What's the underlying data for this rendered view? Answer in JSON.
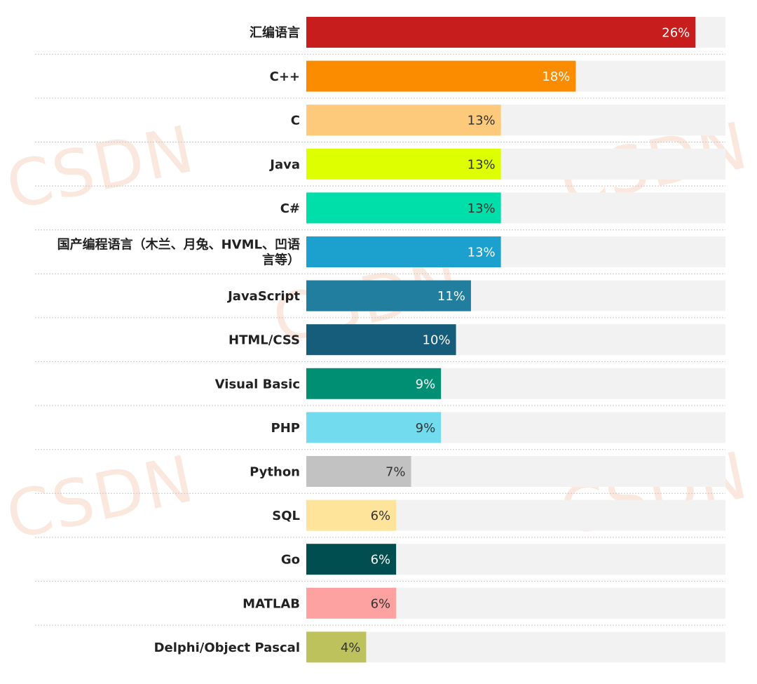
{
  "chart_data": {
    "type": "bar",
    "orientation": "horizontal",
    "categories": [
      "汇编语言",
      "C++",
      "C",
      "Java",
      "C#",
      "国产编程语言（木兰、月兔、HVML、凹语言等）",
      "JavaScript",
      "HTML/CSS",
      "Visual Basic",
      "PHP",
      "Python",
      "SQL",
      "Go",
      "MATLAB",
      "Delphi/Object Pascal"
    ],
    "category_lines": [
      [
        "汇编语言"
      ],
      [
        "C++"
      ],
      [
        "C"
      ],
      [
        "Java"
      ],
      [
        "C#"
      ],
      [
        "国产编程语言（木兰、月兔、HVML、凹语",
        "言等）"
      ],
      [
        "JavaScript"
      ],
      [
        "HTML/CSS"
      ],
      [
        "Visual Basic"
      ],
      [
        "PHP"
      ],
      [
        "Python"
      ],
      [
        "SQL"
      ],
      [
        "Go"
      ],
      [
        "MATLAB"
      ],
      [
        "Delphi/Object Pascal"
      ]
    ],
    "values": [
      26,
      18,
      13,
      13,
      13,
      13,
      11,
      10,
      9,
      9,
      7,
      6,
      6,
      6,
      4
    ],
    "value_labels": [
      "26%",
      "18%",
      "13%",
      "13%",
      "13%",
      "13%",
      "11%",
      "10%",
      "9%",
      "9%",
      "7%",
      "6%",
      "6%",
      "6%",
      "4%"
    ],
    "colors": [
      "#c81d1d",
      "#fb8c00",
      "#fdc97a",
      "#ddff00",
      "#00dfaa",
      "#1ca1ce",
      "#217e9e",
      "#155d7b",
      "#008f73",
      "#72dcee",
      "#c2c2c2",
      "#fde49a",
      "#014e50",
      "#fea1a1",
      "#bdc25c"
    ],
    "value_label_colors": [
      "#ffffff",
      "#ffffff",
      "#333333",
      "#333333",
      "#333333",
      "#ffffff",
      "#ffffff",
      "#ffffff",
      "#ffffff",
      "#333333",
      "#333333",
      "#333333",
      "#ffffff",
      "#333333",
      "#333333"
    ],
    "track_color": "#f2f2f2",
    "xlim": [
      0,
      28
    ],
    "title": "",
    "xlabel": "",
    "ylabel": "",
    "grid": false,
    "legend": "none"
  },
  "watermark_text": "CSDN"
}
